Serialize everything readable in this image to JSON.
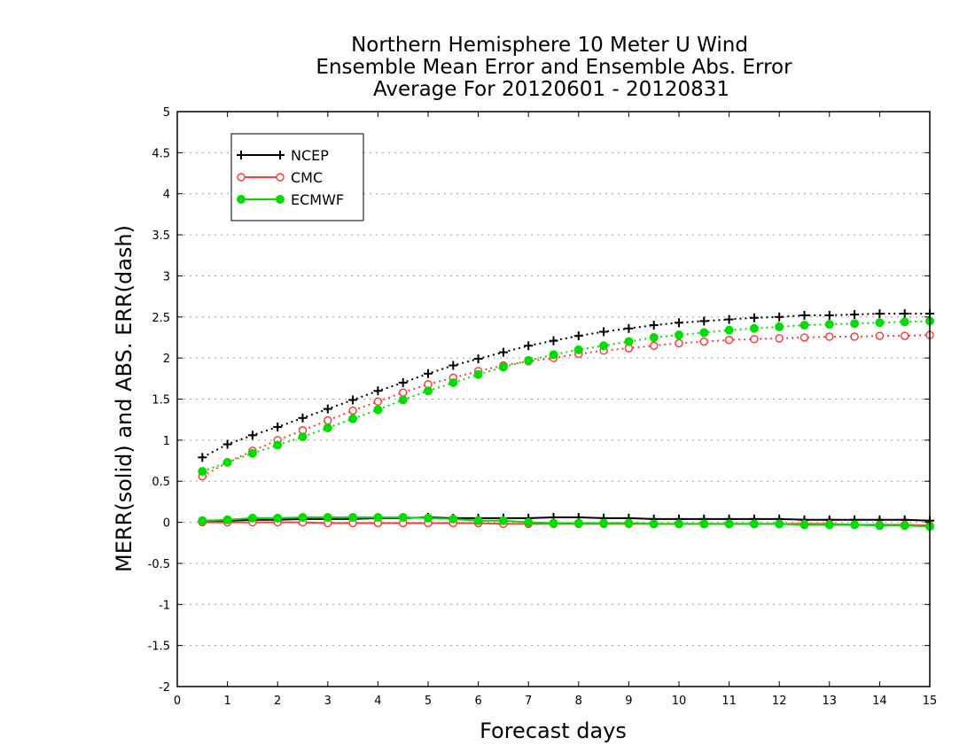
{
  "chart_data": {
    "type": "line",
    "title_lines": [
      "Northern Hemisphere 10 Meter U Wind",
      "Ensemble Mean Error and Ensemble Abs. Error",
      "Average For 20120601 - 20120831"
    ],
    "xlabel": "Forecast days",
    "ylabel": "MERR(solid) and ABS. ERR(dash)",
    "xlim": [
      0,
      15
    ],
    "ylim": [
      -2,
      5
    ],
    "x_ticks": [
      "0",
      "1",
      "2",
      "3",
      "4",
      "5",
      "6",
      "7",
      "8",
      "9",
      "10",
      "11",
      "12",
      "13",
      "14",
      "15"
    ],
    "y_ticks": [
      "-2",
      "-1.5",
      "-1",
      "-0.5",
      "0",
      "0.5",
      "1",
      "1.5",
      "2",
      "2.5",
      "3",
      "3.5",
      "4",
      "4.5",
      "5"
    ],
    "grid": "horizontal dotted",
    "legend_position": "top-left",
    "x": [
      0.5,
      1,
      1.5,
      2,
      2.5,
      3,
      3.5,
      4,
      4.5,
      5,
      5.5,
      6,
      6.5,
      7,
      7.5,
      8,
      8.5,
      9,
      9.5,
      10,
      10.5,
      11,
      11.5,
      12,
      12.5,
      13,
      13.5,
      14,
      14.5,
      15
    ],
    "series": [
      {
        "name": "NCEP",
        "color": "#000000",
        "marker": "plus",
        "abs_error": [
          0.79,
          0.95,
          1.06,
          1.16,
          1.27,
          1.38,
          1.49,
          1.6,
          1.7,
          1.81,
          1.91,
          1.99,
          2.07,
          2.15,
          2.21,
          2.27,
          2.32,
          2.36,
          2.4,
          2.43,
          2.45,
          2.47,
          2.49,
          2.5,
          2.52,
          2.52,
          2.53,
          2.54,
          2.54,
          2.54
        ],
        "mean_error": [
          0.01,
          0.02,
          0.03,
          0.03,
          0.04,
          0.04,
          0.04,
          0.05,
          0.05,
          0.06,
          0.05,
          0.05,
          0.05,
          0.05,
          0.06,
          0.06,
          0.05,
          0.05,
          0.04,
          0.04,
          0.04,
          0.04,
          0.04,
          0.04,
          0.03,
          0.03,
          0.03,
          0.03,
          0.03,
          0.02
        ]
      },
      {
        "name": "CMC",
        "color": "#ff3c3c",
        "marker": "open-circle",
        "abs_error": [
          0.56,
          0.73,
          0.87,
          1.0,
          1.12,
          1.24,
          1.36,
          1.47,
          1.58,
          1.68,
          1.76,
          1.84,
          1.91,
          1.96,
          2.0,
          2.05,
          2.09,
          2.12,
          2.15,
          2.18,
          2.2,
          2.22,
          2.23,
          2.24,
          2.25,
          2.26,
          2.26,
          2.27,
          2.27,
          2.28
        ],
        "mean_error": [
          0.0,
          0.0,
          0.0,
          0.0,
          0.0,
          -0.01,
          -0.01,
          -0.01,
          -0.01,
          -0.01,
          -0.01,
          -0.01,
          -0.02,
          -0.02,
          -0.02,
          -0.02,
          -0.02,
          -0.02,
          -0.02,
          -0.02,
          -0.02,
          -0.02,
          -0.02,
          -0.02,
          -0.02,
          -0.02,
          -0.03,
          -0.03,
          -0.03,
          -0.04
        ]
      },
      {
        "name": "ECMWF",
        "color": "#00dd00",
        "marker": "filled-circle",
        "abs_error": [
          0.62,
          0.73,
          0.84,
          0.94,
          1.04,
          1.15,
          1.26,
          1.37,
          1.49,
          1.6,
          1.7,
          1.8,
          1.89,
          1.97,
          2.04,
          2.1,
          2.15,
          2.2,
          2.25,
          2.28,
          2.31,
          2.34,
          2.36,
          2.38,
          2.4,
          2.41,
          2.42,
          2.43,
          2.44,
          2.45
        ],
        "mean_error": [
          0.02,
          0.03,
          0.05,
          0.05,
          0.06,
          0.06,
          0.06,
          0.06,
          0.06,
          0.05,
          0.04,
          0.02,
          0.02,
          0.0,
          -0.01,
          -0.01,
          -0.01,
          -0.01,
          -0.02,
          -0.02,
          -0.02,
          -0.02,
          -0.02,
          -0.02,
          -0.03,
          -0.03,
          -0.03,
          -0.04,
          -0.04,
          -0.05
        ]
      }
    ]
  }
}
